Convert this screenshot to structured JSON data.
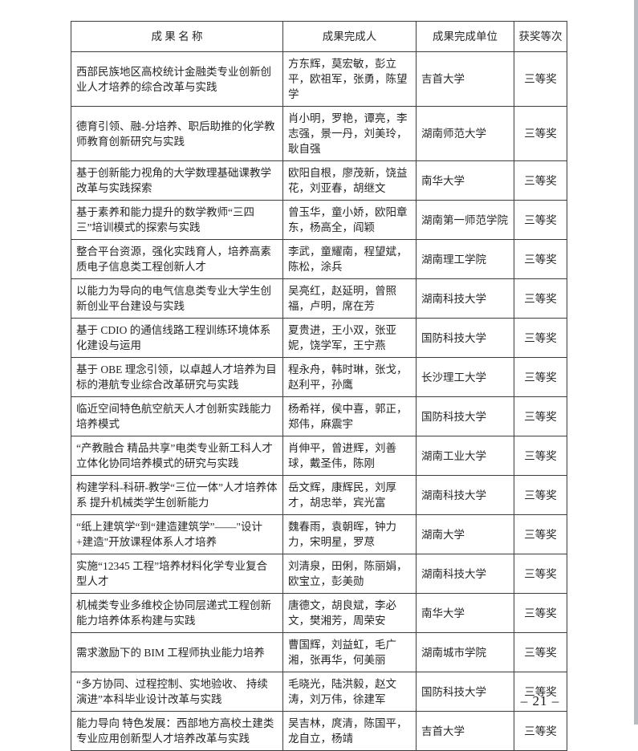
{
  "page": {
    "page_number": "– 21 –"
  },
  "table": {
    "headers": [
      "成 果 名 称",
      "成果完成人",
      "成果完成单位",
      "获奖等次"
    ],
    "rows": [
      {
        "name": "西部民族地区高校统计金融类专业创新创业人才培养的综合改革与实践",
        "people": "方东辉，莫宏敏，彭立平，欧祖军，张勇，陈望学",
        "unit": "吉首大学",
        "award": "三等奖"
      },
      {
        "name": "德育引领、融-分培养、职后助推的化学教师教育创新研究与实践",
        "people": "肖小明，罗艳，谭亮，李志强，景一丹，刘美玲，耿自强",
        "unit": "湖南师范大学",
        "award": "三等奖"
      },
      {
        "name": "基于创新能力视角的大学数理基础课教学改革与实践探索",
        "people": "欧阳自根，廖茂新，饶益花，刘亚春，胡继文",
        "unit": "南华大学",
        "award": "三等奖"
      },
      {
        "name": "基于素养和能力提升的数学教师“三四三”培训模式的探索与实践",
        "people": "曾玉华，童小娇，欧阳章东，杨高全，阎颖",
        "unit": "湖南第一师范学院",
        "award": "三等奖"
      },
      {
        "name": "整合平台资源，强化实践育人，培养高素质电子信息类工程创新人才",
        "people": "李武，童耀南，程望斌，陈松，涂兵",
        "unit": "湖南理工学院",
        "award": "三等奖"
      },
      {
        "name": "以能力为导向的电气信息类专业大学生创新创业平台建设与实践",
        "people": "吴亮红，赵延明，曾照福，卢明，席在芳",
        "unit": "湖南科技大学",
        "award": "三等奖"
      },
      {
        "name": "基于 CDIO 的通信线路工程训练环境体系化建设与运用",
        "people": "夏贵进，王小双，张亚妮，饶学军，王宁燕",
        "unit": "国防科技大学",
        "award": "三等奖"
      },
      {
        "name": "基于 OBE 理念引领，以卓越人才培养为目标的港航专业综合改革研究与实践",
        "people": "程永舟，韩时琳，张戈，赵利平，孙鹰",
        "unit": "长沙理工大学",
        "award": "三等奖"
      },
      {
        "name": "临近空间特色航空航天人才创新实践能力培养模式",
        "people": "杨希祥，侯中喜，郭正，郑伟，麻震宇",
        "unit": "国防科技大学",
        "award": "三等奖"
      },
      {
        "name": "“产教融合 精品共享”电类专业新工科人才立体化协同培养模式的研究与实践",
        "people": "肖伸平，曾进辉，刘善球，戴圣伟，陈刚",
        "unit": "湖南工业大学",
        "award": "三等奖"
      },
      {
        "name": "构建学科-科研-教学“三位一体”人才培养体系 提升机械类学生创新能力",
        "people": "岳文辉，康辉民，刘厚才，胡忠举，宾光富",
        "unit": "湖南科技大学",
        "award": "三等奖"
      },
      {
        "name": "“纸上建筑学“到“建造建筑学”——\"设计+建造\"开放课程体系人才培养",
        "people": "魏春雨，袁朝晖，钟力力，宋明星，罗荩",
        "unit": "湖南大学",
        "award": "三等奖"
      },
      {
        "name": "实施“12345 工程”培养材料化学专业复合型人才",
        "people": "刘清泉，田俐，陈丽娟，欧宝立，彭美勋",
        "unit": "湖南科技大学",
        "award": "三等奖"
      },
      {
        "name": "机械类专业多维校企协同层递式工程创新能力培养体系构建与实践",
        "people": "唐德文，胡良斌，李必文，樊湘芳，周荣安",
        "unit": "南华大学",
        "award": "三等奖"
      },
      {
        "name": "需求激励下的 BIM 工程师执业能力培养",
        "people": "曹国辉，刘益虹，毛广湘，张再华，何美丽",
        "unit": "湖南城市学院",
        "award": "三等奖"
      },
      {
        "name": "“多方协同、过程控制、实地验收、 持续演进”本科毕业设计改革与实践",
        "people": "毛晓光，陆洪毅，赵文涛，刘万伟，徐建军",
        "unit": "国防科技大学",
        "award": "三等奖"
      },
      {
        "name": "能力导向 特色发展：西部地方高校土建类专业应用创新型人才培养改革与实践",
        "people": "吴吉林，庹清，陈国平，龙自立，杨靖",
        "unit": "吉首大学",
        "award": "三等奖"
      }
    ]
  }
}
